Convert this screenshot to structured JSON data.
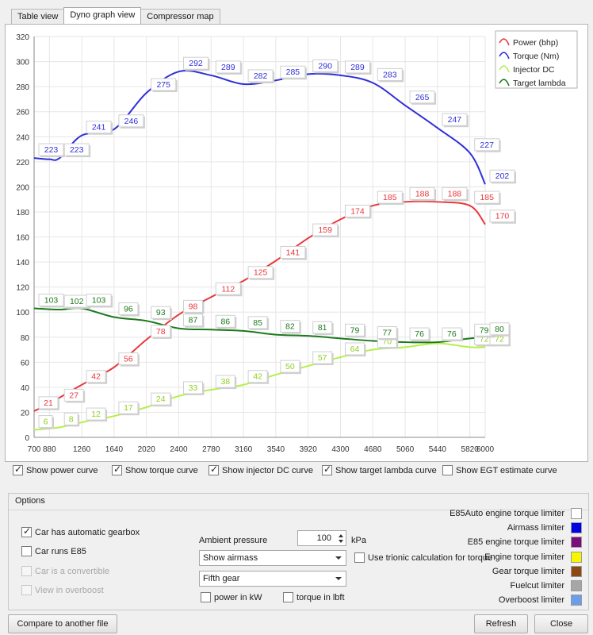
{
  "tabs": [
    {
      "label": "Table view"
    },
    {
      "label": "Dyno graph view"
    },
    {
      "label": "Compressor map"
    }
  ],
  "chart_data": {
    "type": "line",
    "x": [
      700,
      880,
      1260,
      1640,
      2020,
      2400,
      2780,
      3160,
      3540,
      3920,
      4300,
      4680,
      5060,
      5440,
      5820,
      6000
    ],
    "x_ticks": [
      700,
      880,
      1260,
      1640,
      2020,
      2400,
      2780,
      3160,
      3540,
      3920,
      4300,
      4680,
      5060,
      5440,
      5820,
      6000
    ],
    "y_ticks": [
      0,
      20,
      40,
      60,
      80,
      100,
      120,
      140,
      160,
      180,
      200,
      220,
      240,
      260,
      280,
      300,
      320
    ],
    "ylim": [
      0,
      320
    ],
    "grid": true,
    "legend_position": "top-right",
    "series": [
      {
        "name": "Power (bhp)",
        "color": "#e8383d",
        "points": [
          [
            700,
            21
          ],
          [
            880,
            27
          ],
          [
            1260,
            42
          ],
          [
            1640,
            56
          ],
          [
            2020,
            78
          ],
          [
            2400,
            98
          ],
          [
            2780,
            112
          ],
          [
            3160,
            125
          ],
          [
            3540,
            141
          ],
          [
            3920,
            159
          ],
          [
            4300,
            174
          ],
          [
            4680,
            185
          ],
          [
            5060,
            188
          ],
          [
            5440,
            188
          ],
          [
            5820,
            185
          ],
          [
            6000,
            170
          ]
        ],
        "labels": [
          [
            700,
            21
          ],
          [
            1000,
            27
          ],
          [
            1260,
            42
          ],
          [
            1640,
            56
          ],
          [
            2020,
            78
          ],
          [
            2400,
            98
          ],
          [
            2780,
            112
          ],
          [
            3160,
            125
          ],
          [
            3540,
            141
          ],
          [
            3920,
            159
          ],
          [
            4300,
            174
          ],
          [
            4680,
            185
          ],
          [
            5060,
            188
          ],
          [
            5440,
            188
          ],
          [
            5820,
            185
          ],
          [
            6000,
            170
          ]
        ]
      },
      {
        "name": "Torque (Nm)",
        "color": "#2f2fd8",
        "points": [
          [
            700,
            223
          ],
          [
            880,
            222
          ],
          [
            1000,
            223
          ],
          [
            1260,
            241
          ],
          [
            1640,
            246
          ],
          [
            2020,
            275
          ],
          [
            2400,
            292
          ],
          [
            2780,
            289
          ],
          [
            3160,
            282
          ],
          [
            3540,
            285
          ],
          [
            3920,
            290
          ],
          [
            4300,
            289
          ],
          [
            4680,
            283
          ],
          [
            5060,
            265
          ],
          [
            5440,
            247
          ],
          [
            5820,
            227
          ],
          [
            6000,
            202
          ]
        ],
        "labels": [
          [
            700,
            223
          ],
          [
            1000,
            223
          ],
          [
            1260,
            241
          ],
          [
            1640,
            246
          ],
          [
            2020,
            275
          ],
          [
            2400,
            292
          ],
          [
            2780,
            289
          ],
          [
            3160,
            282
          ],
          [
            3540,
            285
          ],
          [
            3920,
            290
          ],
          [
            4300,
            289
          ],
          [
            4680,
            283
          ],
          [
            5060,
            265
          ],
          [
            5440,
            247
          ],
          [
            5820,
            227
          ],
          [
            6000,
            202
          ]
        ]
      },
      {
        "name": "Injector DC",
        "color": "#b5ef4a",
        "points": [
          [
            700,
            6
          ],
          [
            1000,
            8
          ],
          [
            1260,
            12
          ],
          [
            1640,
            17
          ],
          [
            2020,
            24
          ],
          [
            2400,
            33
          ],
          [
            2780,
            38
          ],
          [
            3160,
            42
          ],
          [
            3540,
            50
          ],
          [
            3920,
            57
          ],
          [
            4300,
            64
          ],
          [
            4680,
            70
          ],
          [
            5060,
            72
          ],
          [
            5440,
            75
          ],
          [
            5820,
            72
          ],
          [
            6000,
            72
          ]
        ],
        "labels": [
          [
            700,
            6
          ],
          [
            1000,
            8
          ],
          [
            1260,
            12
          ],
          [
            1640,
            17
          ],
          [
            2020,
            24
          ],
          [
            2400,
            33
          ],
          [
            2780,
            38
          ],
          [
            3160,
            42
          ],
          [
            3540,
            50
          ],
          [
            3920,
            57
          ],
          [
            4300,
            64
          ],
          [
            4680,
            70
          ],
          [
            5820,
            72
          ],
          [
            6000,
            72
          ]
        ]
      },
      {
        "name": "Target lambda",
        "color": "#1d7a1d",
        "points": [
          [
            700,
            103
          ],
          [
            1000,
            102
          ],
          [
            1260,
            103
          ],
          [
            1640,
            96
          ],
          [
            2020,
            93
          ],
          [
            2400,
            87
          ],
          [
            2780,
            86
          ],
          [
            3160,
            85
          ],
          [
            3540,
            82
          ],
          [
            3920,
            81
          ],
          [
            4300,
            79
          ],
          [
            4680,
            77
          ],
          [
            5060,
            76
          ],
          [
            5440,
            76
          ],
          [
            5820,
            79
          ],
          [
            6000,
            80
          ]
        ],
        "labels": [
          [
            700,
            103
          ],
          [
            1000,
            102
          ],
          [
            1260,
            103
          ],
          [
            1640,
            96
          ],
          [
            2020,
            93
          ],
          [
            2400,
            87
          ],
          [
            2780,
            86
          ],
          [
            3160,
            85
          ],
          [
            3540,
            82
          ],
          [
            3920,
            81
          ],
          [
            4300,
            79
          ],
          [
            4680,
            77
          ],
          [
            5060,
            76
          ],
          [
            5440,
            76
          ],
          [
            5820,
            79
          ],
          [
            6000,
            80
          ]
        ]
      }
    ]
  },
  "curve_checks": [
    {
      "label": "Show power curve",
      "checked": true
    },
    {
      "label": "Show torque curve",
      "checked": true
    },
    {
      "label": "Show injector DC curve",
      "checked": true
    },
    {
      "label": "Show target lambda curve",
      "checked": true
    },
    {
      "label": "Show EGT estimate curve",
      "checked": false
    }
  ],
  "options": {
    "title": "Options",
    "checks": [
      {
        "label": "Car has automatic gearbox",
        "checked": true,
        "enabled": true
      },
      {
        "label": "Car runs E85",
        "checked": false,
        "enabled": true
      },
      {
        "label": "Car is a convertible",
        "checked": false,
        "enabled": false
      },
      {
        "label": "View in overboost",
        "checked": false,
        "enabled": false
      }
    ],
    "ambient_label": "Ambient pressure",
    "ambient_value": "100",
    "ambient_unit": "kPa",
    "airmass_select": "Show airmass",
    "gear_select": "Fifth gear",
    "power_kw_label": "power in kW",
    "torque_lbft_label": "torque in lbft",
    "trionic_label": "Use trionic calculation for torque",
    "limiters": [
      {
        "label": "E85Auto engine torque limiter",
        "color": "#ffffff"
      },
      {
        "label": "Airmass limiter",
        "color": "#0000e6"
      },
      {
        "label": "E85 engine torque limiter",
        "color": "#7a0b7a"
      },
      {
        "label": "Engine torque limiter",
        "color": "#f6f600"
      },
      {
        "label": "Gear torque limiter",
        "color": "#8b4a14"
      },
      {
        "label": "Fuelcut limiter",
        "color": "#a6a6a6"
      },
      {
        "label": "Overboost limiter",
        "color": "#6b9ee8"
      }
    ]
  },
  "buttons": {
    "compare": "Compare to another file",
    "refresh": "Refresh",
    "close": "Close"
  }
}
